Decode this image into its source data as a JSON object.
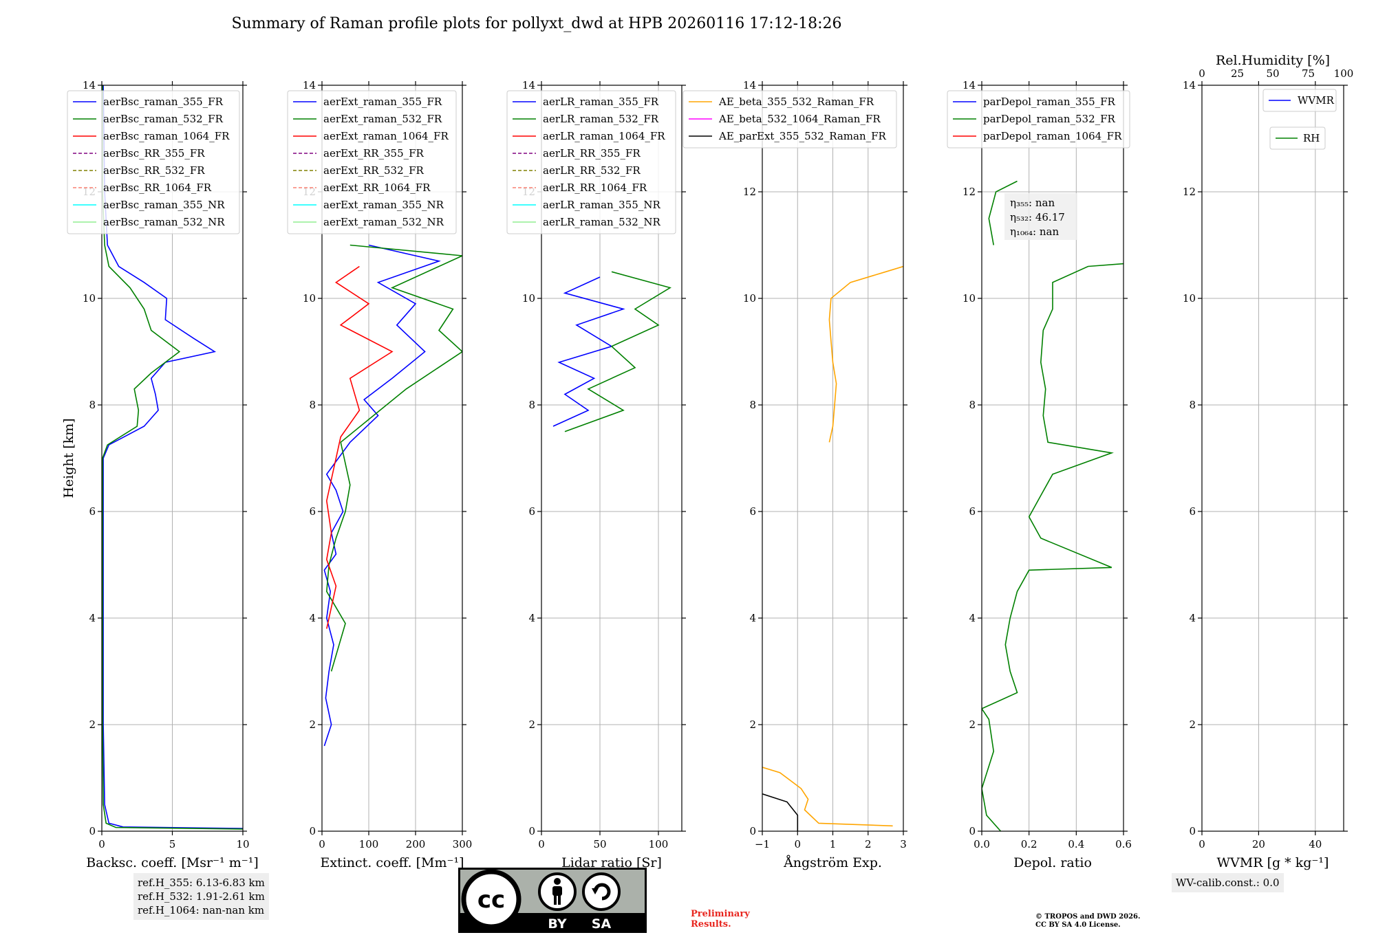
{
  "title": "Summary of Raman profile plots for pollyxt_dwd at HPB 20260116 17:12-18:26",
  "colors": {
    "blue": "#0000ff",
    "green": "#008000",
    "red": "#ff0000",
    "purple": "#800080",
    "olive": "#808000",
    "salmon": "#fa8072",
    "cyan": "#00ffff",
    "lightgreen": "#90ee90",
    "orange": "#ffa500",
    "magenta": "#ff00ff",
    "black": "#000000"
  },
  "chart_data": [
    {
      "type": "line",
      "id": "bsc",
      "xlabel": "Backsc. coeff. [Msr⁻¹ m⁻¹]",
      "ylabel": "Height [km]",
      "xlim": [
        0,
        10
      ],
      "ylim": [
        0,
        14
      ],
      "xticks": [
        0,
        5,
        10
      ],
      "xtick_labels": [
        "0",
        "5",
        "10"
      ],
      "yticks": [
        0,
        2,
        4,
        6,
        8,
        10,
        12,
        14
      ],
      "ytick_labels": [
        "0",
        "2",
        "4",
        "6",
        "8",
        "10",
        "12",
        "14"
      ],
      "legend": [
        "aerBsc_raman_355_FR",
        "aerBsc_raman_532_FR",
        "aerBsc_raman_1064_FR",
        "aerBsc_RR_355_FR",
        "aerBsc_RR_532_FR",
        "aerBsc_RR_1064_FR",
        "aerBsc_raman_355_NR",
        "aerBsc_raman_532_NR"
      ],
      "legend_colors": [
        "blue",
        "green",
        "red",
        "purple",
        "olive",
        "salmon",
        "cyan",
        "lightgreen"
      ],
      "legend_dashed": [
        false,
        false,
        false,
        true,
        true,
        true,
        false,
        false
      ],
      "series": [
        {
          "name": "aerBsc_raman_355_FR",
          "color": "blue",
          "points": [
            [
              10,
              0.05
            ],
            [
              1.5,
              0.08
            ],
            [
              0.5,
              0.15
            ],
            [
              0.2,
              0.5
            ],
            [
              0.1,
              2
            ],
            [
              0.1,
              5
            ],
            [
              0.1,
              7
            ],
            [
              0.5,
              7.25
            ],
            [
              3,
              7.6
            ],
            [
              4,
              7.9
            ],
            [
              3.8,
              8.2
            ],
            [
              3.5,
              8.5
            ],
            [
              4.5,
              8.8
            ],
            [
              8,
              9.0
            ],
            [
              6.5,
              9.25
            ],
            [
              4.5,
              9.6
            ],
            [
              4.6,
              10.0
            ],
            [
              3.0,
              10.3
            ],
            [
              1.2,
              10.6
            ],
            [
              0.4,
              11.0
            ],
            [
              0.2,
              12
            ],
            [
              0.1,
              14
            ]
          ]
        },
        {
          "name": "aerBsc_raman_532_FR",
          "color": "green",
          "points": [
            [
              10,
              0.04
            ],
            [
              1.0,
              0.07
            ],
            [
              0.3,
              0.15
            ],
            [
              0.1,
              0.5
            ],
            [
              0.05,
              2
            ],
            [
              0.05,
              7
            ],
            [
              0.4,
              7.25
            ],
            [
              2.5,
              7.6
            ],
            [
              2.6,
              7.9
            ],
            [
              2.3,
              8.3
            ],
            [
              3.5,
              8.6
            ],
            [
              5.5,
              9.0
            ],
            [
              3.5,
              9.4
            ],
            [
              3.0,
              9.8
            ],
            [
              2.0,
              10.2
            ],
            [
              0.5,
              10.6
            ],
            [
              0.2,
              11.0
            ],
            [
              0.05,
              12
            ],
            [
              0.05,
              14
            ]
          ]
        }
      ]
    },
    {
      "type": "line",
      "id": "ext",
      "xlabel": "Extinct. coeff. [Mm⁻¹]",
      "xlim": [
        0,
        300
      ],
      "ylim": [
        0,
        14
      ],
      "xticks": [
        0,
        100,
        200,
        300
      ],
      "xtick_labels": [
        "0",
        "100",
        "200",
        "300"
      ],
      "yticks": [
        0,
        2,
        4,
        6,
        8,
        10,
        12,
        14
      ],
      "ytick_labels": [
        "0",
        "2",
        "4",
        "6",
        "8",
        "10",
        "12",
        "14"
      ],
      "legend": [
        "aerExt_raman_355_FR",
        "aerExt_raman_532_FR",
        "aerExt_raman_1064_FR",
        "aerExt_RR_355_FR",
        "aerExt_RR_532_FR",
        "aerExt_RR_1064_FR",
        "aerExt_raman_355_NR",
        "aerExt_raman_532_NR"
      ],
      "legend_colors": [
        "blue",
        "green",
        "red",
        "purple",
        "olive",
        "salmon",
        "cyan",
        "lightgreen"
      ],
      "legend_dashed": [
        false,
        false,
        false,
        true,
        true,
        true,
        false,
        false
      ],
      "series": [
        {
          "name": "aerExt_raman_355_FR",
          "color": "blue",
          "points": [
            [
              5,
              1.6
            ],
            [
              20,
              2.0
            ],
            [
              8,
              2.5
            ],
            [
              15,
              3.0
            ],
            [
              25,
              3.5
            ],
            [
              10,
              4.0
            ],
            [
              18,
              4.5
            ],
            [
              5,
              4.9
            ],
            [
              30,
              5.2
            ],
            [
              20,
              5.6
            ],
            [
              45,
              6.0
            ],
            [
              30,
              6.4
            ],
            [
              10,
              6.7
            ],
            [
              60,
              7.3
            ],
            [
              120,
              7.8
            ],
            [
              90,
              8.1
            ],
            [
              150,
              8.5
            ],
            [
              220,
              9.0
            ],
            [
              160,
              9.5
            ],
            [
              200,
              9.9
            ],
            [
              120,
              10.3
            ],
            [
              250,
              10.7
            ],
            [
              100,
              11.0
            ]
          ]
        },
        {
          "name": "aerExt_raman_532_FR",
          "color": "green",
          "points": [
            [
              20,
              3.0
            ],
            [
              50,
              3.9
            ],
            [
              10,
              4.5
            ],
            [
              15,
              5.0
            ],
            [
              30,
              5.5
            ],
            [
              50,
              6.0
            ],
            [
              60,
              6.5
            ],
            [
              40,
              7.3
            ],
            [
              110,
              7.8
            ],
            [
              180,
              8.3
            ],
            [
              300,
              9.0
            ],
            [
              250,
              9.4
            ],
            [
              280,
              9.8
            ],
            [
              150,
              10.2
            ],
            [
              300,
              10.8
            ],
            [
              60,
              11.0
            ]
          ]
        },
        {
          "name": "aerExt_raman_1064_FR",
          "color": "red",
          "points": [
            [
              10,
              3.8
            ],
            [
              30,
              4.6
            ],
            [
              10,
              5.1
            ],
            [
              20,
              5.6
            ],
            [
              10,
              6.2
            ],
            [
              40,
              7.4
            ],
            [
              80,
              7.9
            ],
            [
              60,
              8.5
            ],
            [
              150,
              9.0
            ],
            [
              40,
              9.5
            ],
            [
              100,
              9.9
            ],
            [
              30,
              10.3
            ],
            [
              80,
              10.6
            ]
          ]
        }
      ]
    },
    {
      "type": "line",
      "id": "lr",
      "xlabel": "Lidar ratio [Sr]",
      "xlim": [
        0,
        120
      ],
      "ylim": [
        0,
        14
      ],
      "xticks": [
        0,
        50,
        100
      ],
      "xtick_labels": [
        "0",
        "50",
        "100"
      ],
      "yticks": [
        0,
        2,
        4,
        6,
        8,
        10,
        12,
        14
      ],
      "ytick_labels": [
        "0",
        "2",
        "4",
        "6",
        "8",
        "10",
        "12",
        "14"
      ],
      "legend": [
        "aerLR_raman_355_FR",
        "aerLR_raman_532_FR",
        "aerLR_raman_1064_FR",
        "aerLR_RR_355_FR",
        "aerLR_RR_532_FR",
        "aerLR_RR_1064_FR",
        "aerLR_raman_355_NR",
        "aerLR_raman_532_NR"
      ],
      "legend_colors": [
        "blue",
        "green",
        "red",
        "purple",
        "olive",
        "salmon",
        "cyan",
        "lightgreen"
      ],
      "legend_dashed": [
        false,
        false,
        false,
        true,
        true,
        true,
        false,
        false
      ],
      "series": [
        {
          "name": "aerLR_raman_355_FR",
          "color": "blue",
          "points": [
            [
              10,
              7.6
            ],
            [
              40,
              7.9
            ],
            [
              20,
              8.2
            ],
            [
              45,
              8.5
            ],
            [
              15,
              8.8
            ],
            [
              60,
              9.1
            ],
            [
              30,
              9.5
            ],
            [
              70,
              9.8
            ],
            [
              20,
              10.1
            ],
            [
              50,
              10.4
            ]
          ]
        },
        {
          "name": "aerLR_raman_532_FR",
          "color": "green",
          "points": [
            [
              20,
              7.5
            ],
            [
              70,
              7.9
            ],
            [
              40,
              8.3
            ],
            [
              80,
              8.7
            ],
            [
              60,
              9.1
            ],
            [
              100,
              9.5
            ],
            [
              80,
              9.8
            ],
            [
              110,
              10.2
            ],
            [
              60,
              10.5
            ]
          ]
        }
      ]
    },
    {
      "type": "line",
      "id": "ae",
      "xlabel": "Ångström Exp.",
      "xlim": [
        -1,
        3
      ],
      "ylim": [
        0,
        14
      ],
      "xticks": [
        -1,
        0,
        1,
        2,
        3
      ],
      "xtick_labels": [
        "−1",
        "0",
        "1",
        "2",
        "3"
      ],
      "yticks": [
        0,
        2,
        4,
        6,
        8,
        10,
        12,
        14
      ],
      "ytick_labels": [
        "0",
        "2",
        "4",
        "6",
        "8",
        "10",
        "12",
        "14"
      ],
      "legend": [
        "AE_beta_355_532_Raman_FR",
        "AE_beta_532_1064_Raman_FR",
        "AE_parExt_355_532_Raman_FR"
      ],
      "legend_colors": [
        "orange",
        "magenta",
        "black"
      ],
      "legend_dashed": [
        false,
        false,
        false
      ],
      "series": [
        {
          "name": "AE_beta_355_532_Raman_FR",
          "color": "orange",
          "points": [
            [
              2.7,
              0.1
            ],
            [
              0.6,
              0.15
            ],
            [
              0.2,
              0.4
            ],
            [
              0.3,
              0.6
            ],
            [
              0.1,
              0.8
            ],
            [
              -0.5,
              1.1
            ],
            [
              -1.0,
              1.2
            ]
          ]
        },
        {
          "name": "AE_beta_355_532_Raman_FR_upper",
          "color": "orange",
          "points": [
            [
              0.9,
              7.3
            ],
            [
              1.0,
              7.6
            ],
            [
              1.05,
              8.0
            ],
            [
              1.1,
              8.4
            ],
            [
              1.0,
              8.8
            ],
            [
              0.95,
              9.2
            ],
            [
              0.9,
              9.6
            ],
            [
              0.95,
              10.0
            ],
            [
              1.5,
              10.3
            ],
            [
              2.5,
              10.5
            ],
            [
              3.0,
              10.6
            ]
          ]
        },
        {
          "name": "AE_parExt_355_532_Raman_FR",
          "color": "black",
          "points": [
            [
              0,
              0
            ],
            [
              0,
              0.3
            ],
            [
              -0.3,
              0.55
            ],
            [
              -1.0,
              0.7
            ]
          ]
        }
      ]
    },
    {
      "type": "line",
      "id": "depol",
      "xlabel": "Depol. ratio",
      "xlim": [
        0,
        0.6
      ],
      "ylim": [
        0,
        14
      ],
      "xticks": [
        0,
        0.2,
        0.4,
        0.6
      ],
      "xtick_labels": [
        "0.0",
        "0.2",
        "0.4",
        "0.6"
      ],
      "yticks": [
        0,
        2,
        4,
        6,
        8,
        10,
        12,
        14
      ],
      "ytick_labels": [
        "0",
        "2",
        "4",
        "6",
        "8",
        "10",
        "12",
        "14"
      ],
      "legend": [
        "parDepol_raman_355_FR",
        "parDepol_raman_532_FR",
        "parDepol_raman_1064_FR"
      ],
      "legend_colors": [
        "blue",
        "green",
        "red"
      ],
      "legend_dashed": [
        false,
        false,
        false
      ],
      "annotation": [
        "η₃₅₅: nan",
        "η₅₃₂: 46.17",
        "η₁₀₆₄: nan"
      ],
      "series": [
        {
          "name": "parDepol_raman_532_FR",
          "color": "green",
          "points": [
            [
              0.08,
              0
            ],
            [
              0.02,
              0.3
            ],
            [
              0.0,
              0.8
            ],
            [
              0.05,
              1.5
            ],
            [
              0.03,
              2.1
            ],
            [
              0.0,
              2.3
            ],
            [
              0.15,
              2.6
            ],
            [
              0.12,
              3.0
            ],
            [
              0.1,
              3.5
            ],
            [
              0.12,
              4.0
            ],
            [
              0.15,
              4.5
            ],
            [
              0.2,
              4.9
            ],
            [
              0.55,
              4.95
            ],
            [
              0.25,
              5.5
            ],
            [
              0.2,
              5.9
            ],
            [
              0.25,
              6.3
            ],
            [
              0.3,
              6.7
            ],
            [
              0.55,
              7.1
            ],
            [
              0.28,
              7.3
            ],
            [
              0.26,
              7.8
            ],
            [
              0.27,
              8.3
            ],
            [
              0.25,
              8.8
            ],
            [
              0.26,
              9.4
            ],
            [
              0.3,
              9.8
            ],
            [
              0.3,
              10.3
            ],
            [
              0.45,
              10.6
            ],
            [
              0.6,
              10.65
            ]
          ]
        },
        {
          "name": "parDepol_raman_532_FR_upper",
          "color": "green",
          "points": [
            [
              0.05,
              11.0
            ],
            [
              0.03,
              11.5
            ],
            [
              0.06,
              12.0
            ],
            [
              0.15,
              12.2
            ]
          ]
        }
      ]
    },
    {
      "type": "line",
      "id": "wv",
      "xlabel": "WVMR [g * kg⁻¹]",
      "top_xlabel": "Rel.Humidity [%]",
      "xlim": [
        0,
        50
      ],
      "ylim": [
        0,
        14
      ],
      "xticks": [
        0,
        20,
        40
      ],
      "xtick_labels": [
        "0",
        "20",
        "40"
      ],
      "top_xticks": [
        0,
        25,
        50,
        75,
        100
      ],
      "top_xtick_labels": [
        "0",
        "25",
        "50",
        "75",
        "100"
      ],
      "yticks": [
        0,
        2,
        4,
        6,
        8,
        10,
        12,
        14
      ],
      "ytick_labels": [
        "0",
        "2",
        "4",
        "6",
        "8",
        "10",
        "12",
        "14"
      ],
      "legend": [
        "WVMR",
        "RH"
      ],
      "legend_colors": [
        "blue",
        "green"
      ],
      "series": []
    }
  ],
  "info": {
    "ref_h_355": "ref.H_355: 6.13-6.83 km",
    "ref_h_532": "ref.H_532: 1.91-2.61 km",
    "ref_h_1064": "ref.H_1064: nan-nan km",
    "wv_calib": "WV-calib.const.: 0.0",
    "preliminary": "Preliminary Results.",
    "copyright_1": "© TROPOS and DWD 2026.",
    "copyright_2": "CC BY SA 4.0 License.",
    "cc_by": "BY",
    "cc_sa": "SA",
    "cc_text": "cc"
  }
}
